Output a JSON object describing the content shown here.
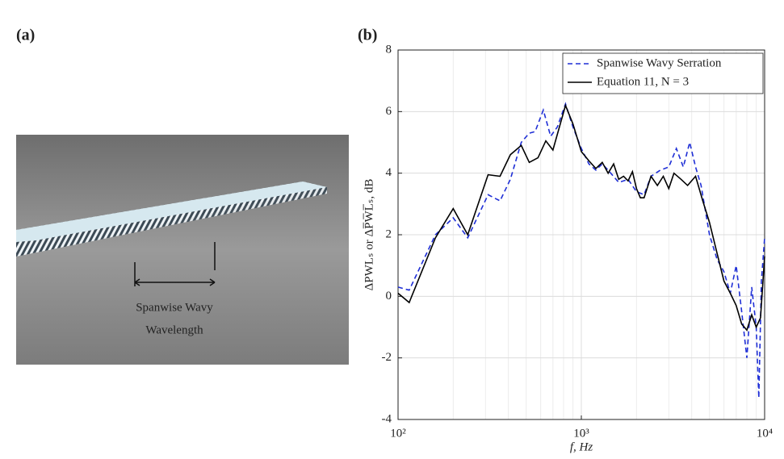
{
  "panels": {
    "a": "(a)",
    "b": "(b)"
  },
  "image_annotation": {
    "line1": "Spanwise Wavy",
    "line2": "Wavelength"
  },
  "chart_data": {
    "type": "line",
    "xlabel": "f, Hz",
    "ylabel": "ΔPWLₛ or ΔP̅W̅L̅ₛ, dB",
    "xscale": "log",
    "xlim": [
      100,
      10000
    ],
    "xticks": [
      {
        "value": 100,
        "label": "10²"
      },
      {
        "value": 1000,
        "label": "10³"
      },
      {
        "value": 10000,
        "label": "10⁴"
      }
    ],
    "ylim": [
      -4,
      8
    ],
    "yticks": [
      -4,
      -2,
      0,
      2,
      4,
      6,
      8
    ],
    "grid": true,
    "legend": "upper right",
    "series": [
      {
        "name": "Spanwise Wavy Serration",
        "color": "#1f2fd6",
        "dash": true,
        "x": [
          100,
          115,
          160,
          200,
          240,
          310,
          360,
          410,
          470,
          520,
          560,
          620,
          680,
          740,
          820,
          900,
          1000,
          1100,
          1200,
          1300,
          1400,
          1600,
          1800,
          2000,
          2200,
          2400,
          2700,
          3000,
          3300,
          3600,
          3900,
          4200,
          4500,
          5000,
          5500,
          6000,
          6500,
          7000,
          7500,
          8000,
          8500,
          9000,
          9300,
          9600,
          10000
        ],
        "values": [
          0.3,
          0.2,
          2.0,
          2.55,
          1.9,
          3.3,
          3.1,
          3.8,
          5.0,
          5.3,
          5.35,
          6.05,
          5.2,
          5.5,
          6.25,
          5.5,
          4.8,
          4.3,
          4.1,
          4.3,
          4.1,
          3.7,
          3.8,
          3.4,
          3.3,
          3.9,
          4.1,
          4.2,
          4.8,
          4.2,
          5.0,
          4.2,
          3.6,
          2.0,
          1.2,
          0.8,
          0.1,
          1.0,
          -0.5,
          -2.0,
          0.3,
          -1.0,
          -3.3,
          0.5,
          1.9
        ]
      },
      {
        "name": "Equation 11, N = 3",
        "color": "#000000",
        "dash": false,
        "x": [
          100,
          115,
          160,
          200,
          240,
          310,
          360,
          410,
          470,
          520,
          580,
          640,
          700,
          820,
          900,
          1000,
          1100,
          1200,
          1300,
          1400,
          1500,
          1600,
          1700,
          1800,
          1900,
          2000,
          2100,
          2200,
          2400,
          2600,
          2800,
          3000,
          3200,
          3500,
          3800,
          4200,
          4600,
          5000,
          5500,
          6000,
          6500,
          7000,
          7500,
          8000,
          8500,
          9000,
          9500,
          10000
        ],
        "values": [
          0.1,
          -0.2,
          1.9,
          2.85,
          2.0,
          3.95,
          3.9,
          4.6,
          4.9,
          4.35,
          4.5,
          5.05,
          4.75,
          6.2,
          5.6,
          4.7,
          4.4,
          4.15,
          4.35,
          4.0,
          4.3,
          3.8,
          3.9,
          3.75,
          4.05,
          3.5,
          3.2,
          3.2,
          3.9,
          3.6,
          3.9,
          3.5,
          4.0,
          3.8,
          3.6,
          3.9,
          3.1,
          2.4,
          1.4,
          0.5,
          0.1,
          -0.3,
          -0.9,
          -1.1,
          -0.6,
          -1.0,
          -0.7,
          1.3
        ]
      }
    ]
  }
}
